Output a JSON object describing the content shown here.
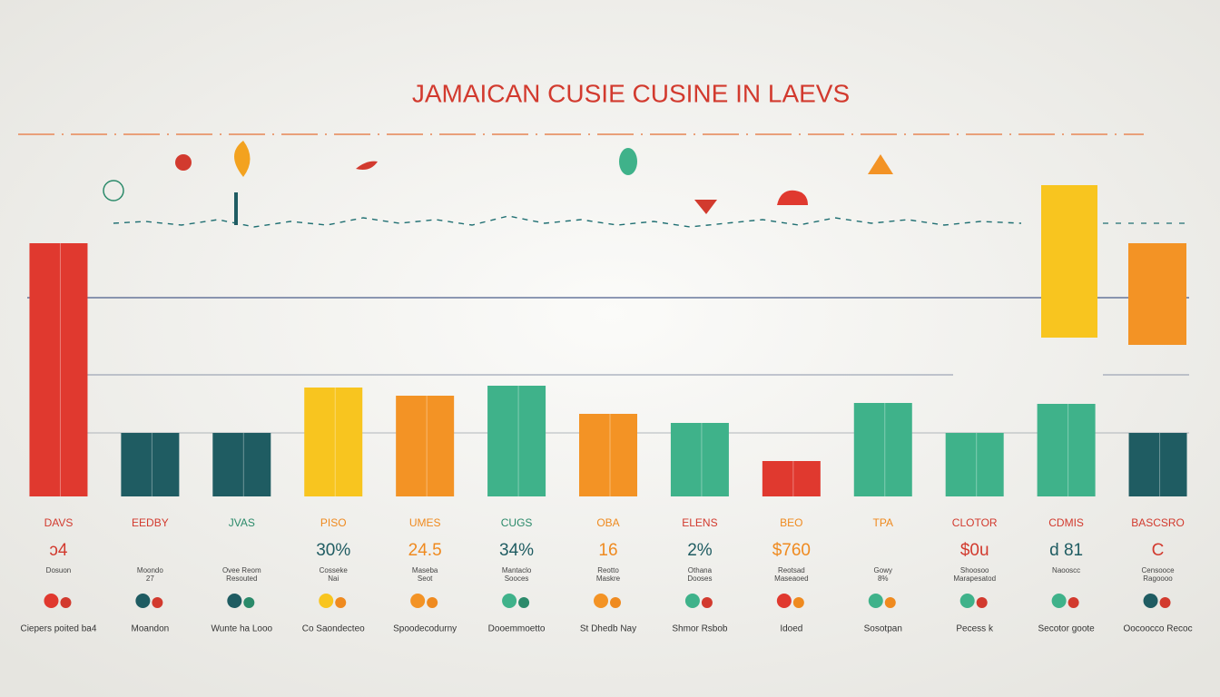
{
  "chart_data": {
    "type": "bar",
    "title": "JAMAICAN CUSIE CUSINE IN LAEVS",
    "categories": [
      "DAVS",
      "EEDBY",
      "JVAS",
      "PISO",
      "UMES",
      "CUGS",
      "OBA",
      "ELENS",
      "BEO",
      "TPA",
      "CLOTOR",
      "CDMIS",
      "BASCSRO"
    ],
    "values": [
      27.9,
      7,
      7,
      12,
      11.1,
      12.2,
      9.1,
      8.1,
      3.9,
      10.3,
      7,
      10.2,
      7
    ],
    "colors": [
      "#e0392f",
      "#1f5c62",
      "#1f5c62",
      "#f8c51f",
      "#f39325",
      "#3fb28a",
      "#f39325",
      "#3fb28a",
      "#e0392f",
      "#3fb28a",
      "#3fb28a",
      "#3fb28a",
      "#1f5c62"
    ],
    "label_colors": [
      "#d23a2e",
      "#d23a2e",
      "#2b8a6a",
      "#ef8a1f",
      "#ef8a1f",
      "#2b8a6a",
      "#ef8a1f",
      "#d23a2e",
      "#ef8a1f",
      "#ef8a1f",
      "#d23a2e",
      "#d23a2e",
      "#d23a2e"
    ],
    "ylim": [
      0,
      30
    ],
    "stats": [
      "ɔ4",
      "",
      "",
      "30%",
      "24.5",
      "34%",
      "16",
      "2%",
      "$760",
      "",
      "$0u",
      "d 81",
      "C"
    ],
    "descriptions": [
      [
        "Dosuon"
      ],
      [
        "Moondo",
        "27"
      ],
      [
        "Ovee Reom",
        "Resouted"
      ],
      [
        "Cosseke",
        "Nai"
      ],
      [
        "Maseba",
        "Seot"
      ],
      [
        "Mantaclo",
        "Sooces"
      ],
      [
        "Reotto",
        "Maskre"
      ],
      [
        "Othana",
        "Dooses"
      ],
      [
        "Reotsad",
        "Maseaoed"
      ],
      [
        "Gowy",
        "8%"
      ],
      [
        "Shoosoo",
        "Marapesatod"
      ],
      [
        "Naooscc"
      ],
      [
        "Censooce",
        "Ragoooo"
      ]
    ],
    "captions": [
      "Ciepers poited ba4",
      "Moandon",
      "Wunte ha Looo",
      "Co Saondecteo",
      "Spoodecodurny",
      "Dooemmoetto",
      "St Dhedb Nay",
      "Shmor Rsbob",
      "Idoed",
      "Sosotpan",
      "Pecess k",
      "Secotor goote",
      "Oocoocco Recoc"
    ]
  }
}
